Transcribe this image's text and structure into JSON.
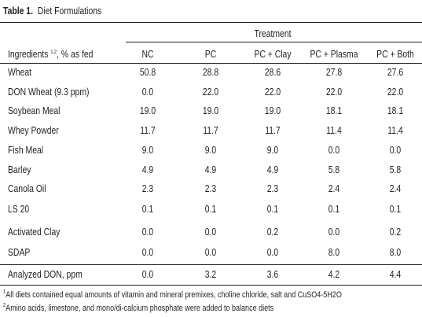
{
  "title": {
    "label": "Table 1.",
    "text": "Diet Formulations"
  },
  "table": {
    "group_header": "Treatment",
    "header": {
      "ingredient": {
        "text": "Ingredients",
        "sup": "1,2",
        "suffix": ", % as fed"
      },
      "columns": [
        "NC",
        "PC",
        "PC + Clay",
        "PC + Plasma",
        "PC + Both"
      ]
    },
    "rows": [
      [
        "Wheat",
        "50.8",
        "28.8",
        "28.6",
        "27.8",
        "27.6"
      ],
      [
        "DON Wheat (9.3 ppm)",
        "0.0",
        "22.0",
        "22.0",
        "22.0",
        "22.0"
      ],
      [
        "Soybean Meal",
        "19.0",
        "19.0",
        "19.0",
        "18.1",
        "18.1"
      ],
      [
        "Whey Powder",
        "11.7",
        "11.7",
        "11.7",
        "11.4",
        "11.4"
      ],
      [
        "Fish Meal",
        "9.0",
        "9.0",
        "9.0",
        "0.0",
        "0.0"
      ],
      [
        "Barley",
        "4.9",
        "4.9",
        "4.9",
        "5.8",
        "5.8"
      ],
      [
        "Canola Oil",
        "2.3",
        "2.3",
        "2.3",
        "2.4",
        "2.4"
      ],
      [
        "LS 20",
        "0.1",
        "0.1",
        "0.1",
        "0.1",
        "0.1"
      ],
      [
        "Activated Clay",
        "0.0",
        "0.0",
        "0.2",
        "0.0",
        "0.2"
      ],
      [
        "SDAP",
        "0.0",
        "0.0",
        "0.0",
        "8.0",
        "8.0"
      ]
    ],
    "summary_row": [
      "Analyzed DON, ppm",
      "0.0",
      "3.2",
      "3.6",
      "4.2",
      "4.4"
    ]
  },
  "footnotes": [
    {
      "mark": "1",
      "text": "All diets contained equal amounts of vitamin and mineral premixes, choline chloride, salt and CuSO4-5H2O"
    },
    {
      "mark": "2",
      "text": "Amino acids, limestone, and mono/di-calcium phosphate were added to balance diets"
    }
  ]
}
